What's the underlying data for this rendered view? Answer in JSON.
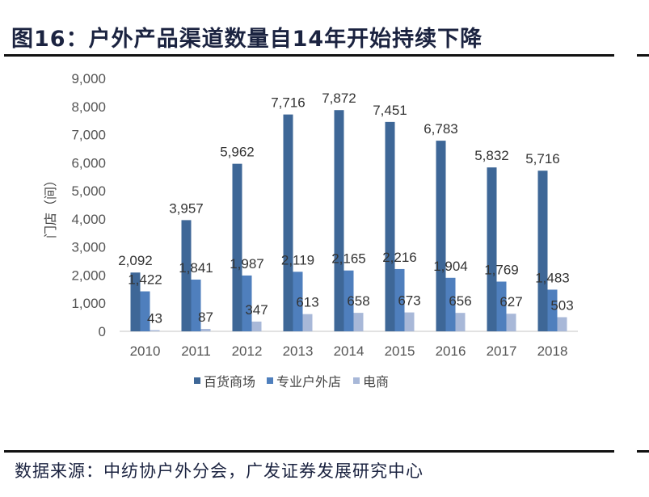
{
  "title": "图16：户外产品渠道数量自14年开始持续下降",
  "source": "数据来源：中纺协户外分会，广发证券发展研究中心",
  "chart_data": {
    "type": "bar",
    "title": "图16：户外产品渠道数量自14年开始持续下降",
    "xlabel": "",
    "ylabel": "门店（间）",
    "ylim": [
      0,
      9000
    ],
    "yticks": [
      "0",
      "1,000",
      "2,000",
      "3,000",
      "4,000",
      "5,000",
      "6,000",
      "7,000",
      "8,000",
      "9,000"
    ],
    "categories": [
      "2010",
      "2011",
      "2012",
      "2013",
      "2014",
      "2015",
      "2016",
      "2017",
      "2018"
    ],
    "series": [
      {
        "name": "百货商场",
        "color": "#3e6797",
        "values": [
          2092,
          3957,
          5962,
          7716,
          7872,
          7451,
          6783,
          5832,
          5716
        ],
        "labels": [
          "2,092",
          "3,957",
          "5,962",
          "7,716",
          "7,872",
          "7,451",
          "6,783",
          "5,832",
          "5,716"
        ]
      },
      {
        "name": "专业户外店",
        "color": "#4f7fbd",
        "values": [
          1422,
          1841,
          1987,
          2119,
          2165,
          2216,
          1904,
          1769,
          1483
        ],
        "labels": [
          "1,422",
          "1,841",
          "1,987",
          "2,119",
          "2,165",
          "2,216",
          "1,904",
          "1,769",
          "1,483"
        ]
      },
      {
        "name": "电商",
        "color": "#a8b8d8",
        "values": [
          43,
          87,
          347,
          613,
          658,
          673,
          656,
          627,
          503
        ],
        "labels": [
          "43",
          "87",
          "347",
          "613",
          "658",
          "673",
          "656",
          "627",
          "503"
        ]
      }
    ],
    "legend": "bottom",
    "grid": false
  }
}
